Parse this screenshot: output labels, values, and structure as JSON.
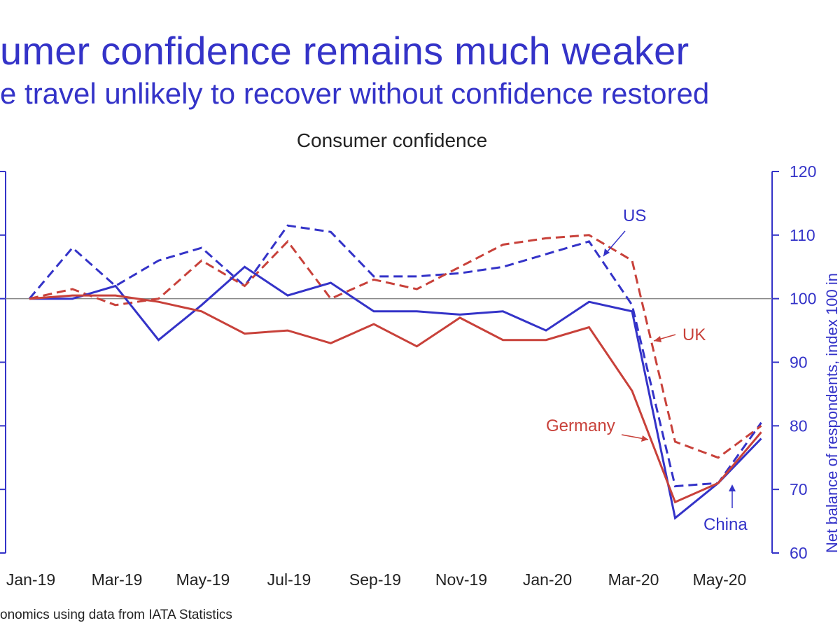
{
  "header": {
    "title": "umer confidence remains much weaker",
    "subtitle": "e travel unlikely to recover without confidence restored"
  },
  "footer": {
    "source": "onomics using data from IATA Statistics"
  },
  "chart_data": {
    "type": "line",
    "title": "Consumer confidence",
    "xlabel": "",
    "ylabel": "Net balance of respondents, index 100 in",
    "x": [
      "Jan-19",
      "Feb-19",
      "Mar-19",
      "Apr-19",
      "May-19",
      "Jun-19",
      "Jul-19",
      "Aug-19",
      "Sep-19",
      "Oct-19",
      "Nov-19",
      "Dec-19",
      "Jan-20",
      "Feb-20",
      "Mar-20",
      "Apr-20",
      "May-20",
      "Jun-20"
    ],
    "x_tick_labels": [
      "Jan-19",
      "Mar-19",
      "May-19",
      "Jul-19",
      "Sep-19",
      "Nov-19",
      "Jan-20",
      "Mar-20",
      "May-20"
    ],
    "x_tick_indices": [
      0,
      2,
      4,
      6,
      8,
      10,
      12,
      14,
      16
    ],
    "ylim": [
      60,
      120
    ],
    "y_ticks": [
      60,
      70,
      80,
      90,
      100,
      110,
      120
    ],
    "y_tick_labels": [
      "60",
      "70",
      "80",
      "90",
      "100",
      "110",
      "120"
    ],
    "reference_line": 100,
    "colors": {
      "red": "#c8413a",
      "blue": "#3433c8",
      "axis": "#3433c8",
      "ref": "#888888"
    },
    "series": [
      {
        "name": "US",
        "color": "#3433c8",
        "style": "dashed",
        "values": [
          100,
          108,
          102,
          106,
          108,
          102,
          111.5,
          110.5,
          103.5,
          103.5,
          104,
          105,
          107,
          109,
          99,
          70.5,
          71,
          80.5
        ]
      },
      {
        "name": "UK",
        "color": "#c8413a",
        "style": "dashed",
        "values": [
          100,
          101.5,
          99,
          100,
          106,
          102,
          109,
          100,
          103,
          101.5,
          105,
          108.5,
          109.5,
          110,
          106,
          77.5,
          75,
          80
        ]
      },
      {
        "name": "China",
        "color": "#3433c8",
        "style": "solid",
        "values": [
          100,
          100,
          102,
          93.5,
          99,
          105,
          100.5,
          102.5,
          98,
          98,
          97.5,
          98,
          95,
          99.5,
          98,
          65.5,
          71,
          78
        ]
      },
      {
        "name": "Germany",
        "color": "#c8413a",
        "style": "solid",
        "values": [
          100,
          100.5,
          100.5,
          99.5,
          98,
          94.5,
          95,
          93,
          96,
          92.5,
          97,
          93.5,
          93.5,
          95.5,
          85.5,
          68,
          71,
          79
        ]
      }
    ],
    "annotations": [
      {
        "label": "US",
        "color": "#3433c8"
      },
      {
        "label": "UK",
        "color": "#c8413a"
      },
      {
        "label": "Germany",
        "color": "#c8413a"
      },
      {
        "label": "China",
        "color": "#3433c8"
      }
    ]
  }
}
